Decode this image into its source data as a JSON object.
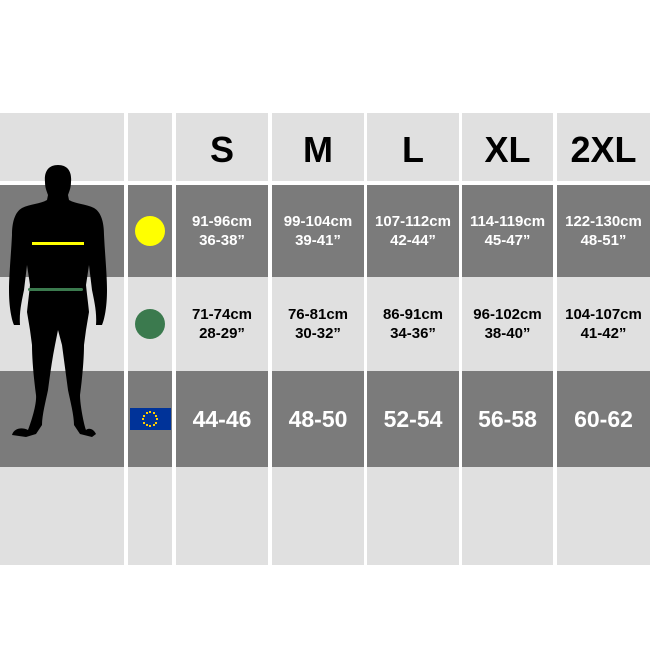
{
  "sizes": [
    "S",
    "M",
    "L",
    "XL",
    "2XL"
  ],
  "rows": [
    {
      "icon": "yellow-circle-chest-icon",
      "color": "#ffff00",
      "values": [
        [
          "91-96cm",
          "36-38”"
        ],
        [
          "99-104cm",
          "39-41”"
        ],
        [
          "107-112cm",
          "42-44”"
        ],
        [
          "114-119cm",
          "45-47”"
        ],
        [
          "122-130cm",
          "48-51”"
        ]
      ]
    },
    {
      "icon": "green-circle-waist-icon",
      "color": "#3b7a4e",
      "values": [
        [
          "71-74cm",
          "28-29”"
        ],
        [
          "76-81cm",
          "30-32”"
        ],
        [
          "86-91cm",
          "34-36”"
        ],
        [
          "96-102cm",
          "38-40”"
        ],
        [
          "104-107cm",
          "41-42”"
        ]
      ]
    },
    {
      "icon": "eu-flag-icon",
      "color": "#003399",
      "values": [
        "44-46",
        "48-50",
        "52-54",
        "56-58",
        "60-62"
      ]
    }
  ],
  "colors": {
    "light": "#e0e0e0",
    "dark": "#7b7b7b",
    "chest": "#ffff00",
    "waist": "#3b7a4e"
  }
}
